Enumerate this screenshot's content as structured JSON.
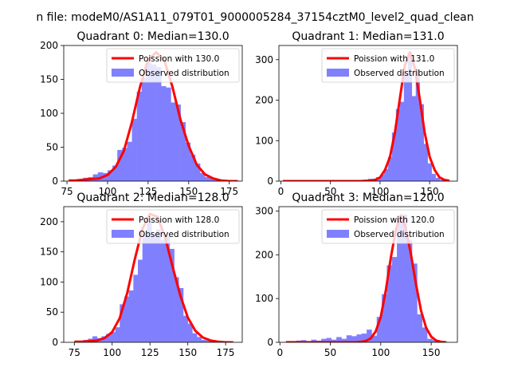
{
  "suptitle": "n file: modeM0/AS1A11_079T01_9000005284_37154cztM0_level2_quad_clean",
  "colors": {
    "poisson": "#ff0000",
    "observed": "#8080ff",
    "axis": "#000000"
  },
  "chart_data": [
    {
      "type": "bar",
      "title": "Quadrant 0: Median=130.0",
      "xlim": [
        73,
        183
      ],
      "ylim": [
        0,
        200
      ],
      "xticks": [
        75,
        100,
        125,
        150,
        175
      ],
      "yticks": [
        0,
        50,
        100,
        150,
        200
      ],
      "legend": [
        "Poission with 130.0",
        "Observed distribution"
      ],
      "legend_position": "upper-right",
      "hist": {
        "name": "Observed distribution",
        "bin_edges": [
          76,
          79,
          82,
          85,
          88,
          91,
          94,
          97,
          100,
          103,
          106,
          109,
          112,
          115,
          118,
          121,
          124,
          127,
          130,
          133,
          136,
          139,
          142,
          145,
          148,
          151,
          154,
          157,
          160,
          163,
          166,
          169,
          172,
          175,
          178,
          181
        ],
        "counts": [
          1,
          2,
          3,
          5,
          6,
          10,
          13,
          12,
          16,
          23,
          46,
          49,
          58,
          92,
          132,
          152,
          175,
          172,
          168,
          140,
          138,
          116,
          113,
          87,
          57,
          39,
          26,
          12,
          6,
          4,
          2,
          2,
          0,
          1,
          1
        ]
      },
      "poisson": {
        "name": "Poission with 130.0",
        "x": [
          76,
          80,
          85,
          90,
          95,
          100,
          105,
          110,
          115,
          120,
          125,
          130,
          135,
          140,
          145,
          150,
          155,
          160,
          165,
          170,
          175,
          180
        ],
        "y": [
          1,
          1,
          2,
          3,
          4,
          9,
          21,
          44,
          87,
          139,
          179,
          190,
          178,
          139,
          90,
          52,
          24,
          10,
          4,
          1,
          0,
          0
        ]
      }
    },
    {
      "type": "bar",
      "title": "Quadrant 1: Median=131.0",
      "xlim": [
        -2,
        178
      ],
      "ylim": [
        0,
        335
      ],
      "xticks": [
        0,
        50,
        100,
        150
      ],
      "yticks": [
        0,
        100,
        200,
        300
      ],
      "legend": [
        "Poission with 131.0",
        "Observed distribution"
      ],
      "legend_position": "upper-right",
      "hist": {
        "name": "Observed distribution",
        "bin_edges": [
          80,
          84,
          88,
          92,
          96,
          100,
          104,
          108,
          112,
          116,
          120,
          124,
          128,
          132,
          136,
          140,
          144,
          148,
          152,
          156,
          160,
          164
        ],
        "counts": [
          2,
          4,
          6,
          6,
          10,
          16,
          30,
          60,
          120,
          178,
          196,
          265,
          318,
          210,
          276,
          190,
          92,
          44,
          18,
          8,
          3
        ]
      },
      "poisson": {
        "name": "Poission with 131.0",
        "x": [
          2,
          20,
          40,
          60,
          80,
          90,
          95,
          100,
          105,
          110,
          115,
          120,
          125,
          130,
          135,
          140,
          145,
          150,
          155,
          160,
          165,
          170
        ],
        "y": [
          0,
          0,
          0,
          0,
          0,
          1,
          3,
          9,
          28,
          60,
          120,
          204,
          286,
          318,
          280,
          204,
          120,
          60,
          28,
          9,
          3,
          1
        ]
      }
    },
    {
      "type": "bar",
      "title": "Quadrant 2: Median=128.0",
      "xlim": [
        68,
        186
      ],
      "ylim": [
        0,
        225
      ],
      "xticks": [
        75,
        100,
        125,
        150,
        175
      ],
      "yticks": [
        0,
        50,
        100,
        150,
        200
      ],
      "legend": [
        "Poission with 128.0",
        "Observed distribution"
      ],
      "legend_position": "upper-right",
      "hist": {
        "name": "Observed distribution",
        "bin_edges": [
          75,
          78,
          81,
          84,
          87,
          90,
          93,
          96,
          99,
          102,
          105,
          108,
          111,
          114,
          117,
          120,
          123,
          126,
          129,
          132,
          135,
          138,
          141,
          144,
          147,
          150,
          153,
          156,
          159,
          162,
          165,
          168,
          171,
          174,
          177,
          180
        ],
        "counts": [
          1,
          2,
          4,
          6,
          10,
          7,
          10,
          14,
          17,
          25,
          63,
          76,
          86,
          112,
          137,
          180,
          200,
          180,
          187,
          170,
          176,
          155,
          108,
          90,
          44,
          31,
          15,
          9,
          4,
          3,
          2,
          1,
          0,
          1,
          1
        ]
      },
      "poisson": {
        "name": "Poission with 128.0",
        "x": [
          75,
          80,
          85,
          90,
          95,
          100,
          105,
          110,
          115,
          120,
          125,
          130,
          135,
          140,
          145,
          150,
          155,
          160,
          165,
          170,
          175,
          180
        ],
        "y": [
          1,
          1,
          2,
          3,
          7,
          17,
          40,
          82,
          138,
          188,
          213,
          208,
          174,
          125,
          78,
          41,
          19,
          8,
          3,
          1,
          0,
          0
        ]
      }
    },
    {
      "type": "bar",
      "title": "Quadrant 3: Median=120.0",
      "xlim": [
        -1,
        176
      ],
      "ylim": [
        0,
        310
      ],
      "xticks": [
        0,
        50,
        100,
        150
      ],
      "yticks": [
        0,
        100,
        200,
        300
      ],
      "legend": [
        "Poission with 120.0",
        "Observed distribution"
      ],
      "legend_position": "upper-right",
      "hist": {
        "name": "Observed distribution",
        "bin_edges": [
          6,
          11,
          16,
          21,
          26,
          31,
          36,
          41,
          46,
          51,
          56,
          61,
          66,
          71,
          76,
          81,
          86,
          91,
          96,
          101,
          106,
          111,
          116,
          121,
          126,
          131,
          136,
          141,
          146,
          151,
          156,
          161,
          166
        ],
        "counts": [
          3,
          3,
          4,
          5,
          3,
          6,
          4,
          8,
          10,
          6,
          12,
          8,
          16,
          14,
          18,
          20,
          29,
          15,
          58,
          110,
          176,
          195,
          290,
          292,
          234,
          180,
          64,
          34,
          8,
          5,
          2,
          1
        ]
      },
      "poisson": {
        "name": "Poission with 120.0",
        "x": [
          6,
          20,
          40,
          60,
          75,
          80,
          85,
          90,
          95,
          100,
          105,
          110,
          115,
          120,
          125,
          130,
          135,
          140,
          145,
          150,
          155,
          160,
          165
        ],
        "y": [
          0,
          0,
          0,
          0,
          0,
          1,
          3,
          9,
          25,
          58,
          118,
          194,
          258,
          290,
          258,
          200,
          132,
          72,
          33,
          13,
          4,
          1,
          0
        ]
      }
    }
  ]
}
